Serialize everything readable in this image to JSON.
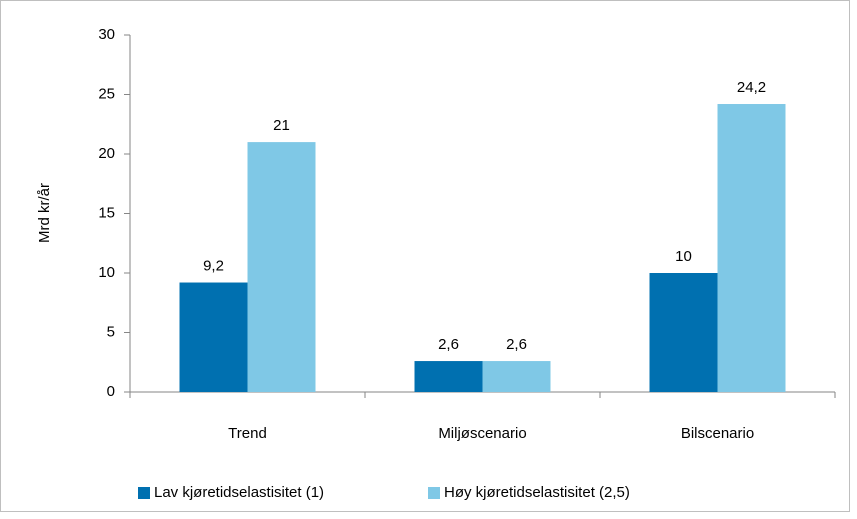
{
  "chart_data": {
    "type": "bar",
    "y_label": "Mrd kr/år",
    "categories": [
      "Trend",
      "Miljøscenario",
      "Bilscenario"
    ],
    "series": [
      {
        "name": "Lav kjøretidselastisitet  (1)",
        "color": "#0070b0",
        "values": [
          9.2,
          2.6,
          10
        ],
        "value_labels": [
          "9,2",
          "2,6",
          "10"
        ]
      },
      {
        "name": "Høy kjøretidselastisitet  (2,5)",
        "color": "#7fc8e6",
        "values": [
          21,
          2.6,
          24.2
        ],
        "value_labels": [
          "21",
          "2,6",
          "24,2"
        ]
      }
    ],
    "ylim": [
      0,
      30
    ],
    "yticks": [
      0,
      5,
      10,
      15,
      20,
      25,
      30
    ],
    "grid": false,
    "legend": "bottom"
  }
}
